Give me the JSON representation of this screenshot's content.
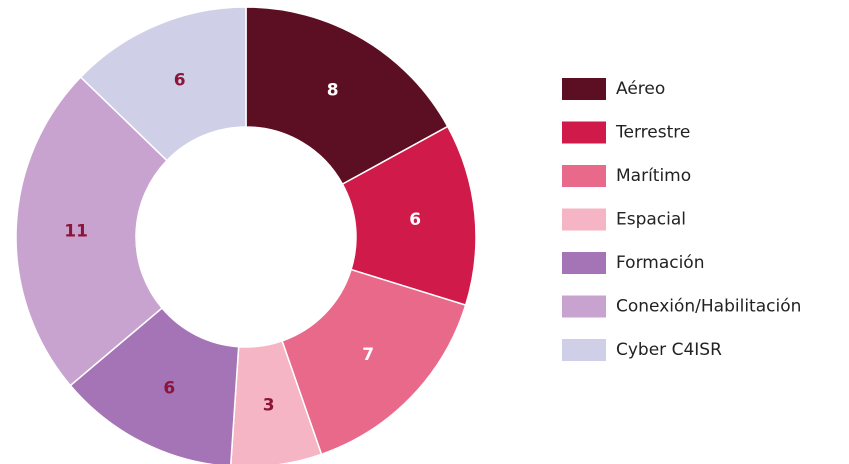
{
  "chart_data": {
    "type": "donut",
    "categories": [
      "Aéreo",
      "Terrestre",
      "Marítimo",
      "Espacial",
      "Formación",
      "Conexión/Habilitación",
      "Cyber C4ISR"
    ],
    "values": [
      8,
      6,
      7,
      3,
      6,
      11,
      6
    ],
    "colors": [
      "#5c0f22",
      "#d01a4a",
      "#e8698a",
      "#f5b5c5",
      "#a474b6",
      "#c9a3d0",
      "#cfd0e8"
    ],
    "label_colors": [
      "#ffffff",
      "#ffffff",
      "#ffffff",
      "#8a1538",
      "#8a1538",
      "#8a1538",
      "#8a1538"
    ],
    "legend": "right"
  }
}
